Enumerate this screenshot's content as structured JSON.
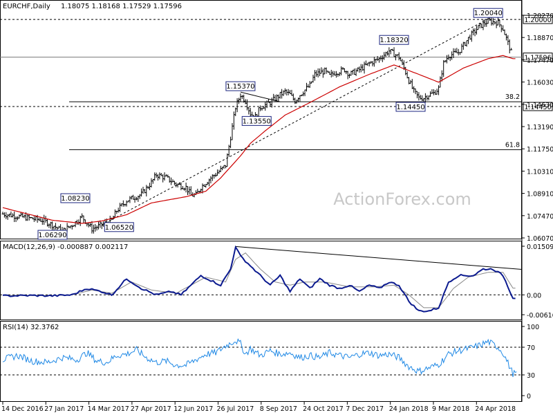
{
  "chart_data": [
    {
      "type": "candlestick",
      "panel": "price",
      "title": "EURCHF,Daily",
      "ohlc_header": "1.18075 1.18168 1.17529 1.17596",
      "ylim": [
        1.0607,
        1.2027
      ],
      "y_ticks": [
        "1.20270",
        "1.18870",
        "1.17470",
        "1.16030",
        "1.14630",
        "1.13190",
        "1.11750",
        "1.10310",
        "1.08910",
        "1.07470",
        "1.06070"
      ],
      "x_ticks": [
        "14 Dec 2016",
        "27 Jan 2017",
        "14 Mar 2017",
        "27 Apr 2017",
        "12 Jun 2017",
        "26 Jul 2017",
        "8 Sep 2017",
        "24 Oct 2017",
        "7 Dec 2017",
        "24 Jan 2018",
        "9 Mar 2018",
        "24 Apr 2018"
      ],
      "close_path": [
        [
          0,
          1.076
        ],
        [
          4,
          1.074
        ],
        [
          8,
          1.072
        ],
        [
          10,
          1.069
        ],
        [
          12,
          1.065
        ],
        [
          14,
          1.069
        ],
        [
          16,
          1.074
        ],
        [
          18,
          1.0665
        ],
        [
          20,
          1.069
        ],
        [
          22,
          1.072
        ],
        [
          23,
          1.078
        ],
        [
          25,
          1.0845
        ],
        [
          28,
          1.0885
        ],
        [
          30,
          1.096
        ],
        [
          31,
          1.101
        ],
        [
          33,
          1.099
        ],
        [
          35,
          1.095
        ],
        [
          37,
          1.093
        ],
        [
          38,
          1.088
        ],
        [
          39,
          1.088
        ],
        [
          40,
          1.093
        ],
        [
          42,
          1.099
        ],
        [
          44,
          1.104
        ],
        [
          45,
          1.107
        ],
        [
          46,
          1.125
        ],
        [
          47,
          1.144
        ],
        [
          48,
          1.152
        ],
        [
          49,
          1.148
        ],
        [
          50,
          1.14
        ],
        [
          51,
          1.138
        ],
        [
          52,
          1.144
        ],
        [
          54,
          1.147
        ],
        [
          56,
          1.152
        ],
        [
          57,
          1.154
        ],
        [
          58,
          1.152
        ],
        [
          59,
          1.148
        ],
        [
          60,
          1.152
        ],
        [
          62,
          1.158
        ],
        [
          63,
          1.165
        ],
        [
          65,
          1.167
        ],
        [
          66,
          1.164
        ],
        [
          67,
          1.166
        ],
        [
          69,
          1.168
        ],
        [
          70,
          1.165
        ],
        [
          72,
          1.168
        ],
        [
          74,
          1.172
        ],
        [
          76,
          1.175
        ],
        [
          78,
          1.18
        ],
        [
          80,
          1.176
        ],
        [
          81,
          1.169
        ],
        [
          82,
          1.161
        ],
        [
          83,
          1.154
        ],
        [
          84,
          1.15
        ],
        [
          85,
          1.15
        ],
        [
          86,
          1.152
        ],
        [
          87,
          1.153
        ],
        [
          88,
          1.156
        ],
        [
          89,
          1.172
        ],
        [
          90,
          1.177
        ],
        [
          92,
          1.179
        ],
        [
          94,
          1.188
        ],
        [
          96,
          1.195
        ],
        [
          98,
          1.199
        ],
        [
          100,
          1.198
        ],
        [
          101,
          1.194
        ],
        [
          102,
          1.185
        ],
        [
          103,
          1.176
        ]
      ],
      "series": [
        {
          "name": "",
          "color": "#cc0000",
          "values": [
            [
              0,
              1.08
            ],
            [
              10,
              1.072
            ],
            [
              16,
              1.07
            ],
            [
              20,
              1.0715
            ],
            [
              25,
              1.0755
            ],
            [
              30,
              1.083
            ],
            [
              37,
              1.087
            ],
            [
              41,
              1.0905
            ],
            [
              44,
              1.099
            ],
            [
              46,
              1.106
            ],
            [
              48,
              1.113
            ],
            [
              50,
              1.121
            ],
            [
              53,
              1.129
            ],
            [
              57,
              1.139
            ],
            [
              62,
              1.147
            ],
            [
              68,
              1.157
            ],
            [
              74,
              1.165
            ],
            [
              79,
              1.171
            ],
            [
              84,
              1.165
            ],
            [
              88,
              1.16
            ],
            [
              93,
              1.169
            ],
            [
              98,
              1.175
            ],
            [
              101,
              1.177
            ],
            [
              103,
              1.175
            ]
          ]
        }
      ],
      "annotations": {
        "price_labels": [
          {
            "text": "1.20040",
            "x": 98,
            "y": 1.2004
          },
          {
            "text": "1.18320",
            "x": 79,
            "y": 1.1832
          },
          {
            "text": "1.15370",
            "x": 48,
            "y": 1.1537
          },
          {
            "text": "1.13550",
            "x": 50,
            "y": 1.1355
          },
          {
            "text": "1.14450",
            "x": 85,
            "y": 1.1445
          },
          {
            "text": "1.08230",
            "x": 18,
            "y": 1.0823
          },
          {
            "text": "1.06520",
            "x": 20,
            "y": 1.0652
          },
          {
            "text": "1.06290",
            "x": 12,
            "y": 1.0629
          }
        ],
        "level_labels": [
          {
            "text": "1.20000",
            "y": 1.2
          },
          {
            "text": "1.17596",
            "y": 1.17596
          },
          {
            "text": "1.14450",
            "y": 1.1445
          }
        ],
        "fib_labels": [
          {
            "text": "38.2",
            "y": 1.1475
          },
          {
            "text": "61.8",
            "y": 1.117
          }
        ],
        "brand": "ActionForex.com"
      }
    },
    {
      "type": "line",
      "panel": "macd",
      "title": "MACD(12,26,9) -0.000887 0.002117",
      "ylim": [
        -0.00616,
        0.01509
      ],
      "y_ticks": [
        "0.015092",
        "0.00",
        "-0.00616"
      ],
      "series": [
        {
          "name": "",
          "color": "#0b1a8f",
          "values": [
            [
              0,
              -0.0003
            ],
            [
              6,
              -0.0002
            ],
            [
              10,
              -0.0003
            ],
            [
              14,
              0.0
            ],
            [
              17,
              0.002
            ],
            [
              20,
              0.001
            ],
            [
              22,
              0.0
            ],
            [
              25,
              0.005
            ],
            [
              28,
              0.002
            ],
            [
              31,
              0.0
            ],
            [
              34,
              0.001
            ],
            [
              36,
              0.0
            ],
            [
              40,
              0.006
            ],
            [
              44,
              0.003
            ],
            [
              46,
              0.008
            ],
            [
              47,
              0.015
            ],
            [
              48,
              0.012
            ],
            [
              50,
              0.009
            ],
            [
              52,
              0.006
            ],
            [
              54,
              0.003
            ],
            [
              56,
              0.006
            ],
            [
              58,
              0.001
            ],
            [
              60,
              0.005
            ],
            [
              62,
              0.002
            ],
            [
              64,
              0.005
            ],
            [
              66,
              0.003
            ],
            [
              68,
              0.002
            ],
            [
              70,
              0.003
            ],
            [
              72,
              0.001
            ],
            [
              74,
              0.003
            ],
            [
              76,
              0.002
            ],
            [
              78,
              0.004
            ],
            [
              80,
              0.003
            ],
            [
              82,
              -0.002
            ],
            [
              84,
              -0.005
            ],
            [
              86,
              -0.005
            ],
            [
              88,
              -0.004
            ],
            [
              90,
              0.004
            ],
            [
              92,
              0.006
            ],
            [
              95,
              0.006
            ],
            [
              97,
              0.008
            ],
            [
              99,
              0.008
            ],
            [
              101,
              0.006
            ],
            [
              103,
              -0.0009
            ]
          ]
        },
        {
          "name": "",
          "color": "#888888",
          "values": [
            [
              0,
              -0.0002
            ],
            [
              10,
              -0.0002
            ],
            [
              14,
              0.0
            ],
            [
              18,
              0.0015
            ],
            [
              22,
              0.0005
            ],
            [
              26,
              0.004
            ],
            [
              30,
              0.0015
            ],
            [
              35,
              0.0005
            ],
            [
              41,
              0.0055
            ],
            [
              45,
              0.004
            ],
            [
              47,
              0.011
            ],
            [
              49,
              0.013
            ],
            [
              52,
              0.008
            ],
            [
              55,
              0.004
            ],
            [
              58,
              0.003
            ],
            [
              61,
              0.004
            ],
            [
              65,
              0.004
            ],
            [
              70,
              0.0025
            ],
            [
              75,
              0.0025
            ],
            [
              79,
              0.003
            ],
            [
              82,
              0.0
            ],
            [
              85,
              -0.004
            ],
            [
              88,
              -0.004
            ],
            [
              91,
              0.002
            ],
            [
              94,
              0.0055
            ],
            [
              98,
              0.007
            ],
            [
              101,
              0.007
            ],
            [
              103,
              0.0021
            ]
          ]
        }
      ]
    },
    {
      "type": "line",
      "panel": "rsi",
      "title": "RSI(14) 32.3762",
      "ylim": [
        0,
        100
      ],
      "y_ticks": [
        "100",
        "70",
        "30",
        "0"
      ],
      "series": [
        {
          "name": "",
          "color": "#1e88e5",
          "values": [
            [
              0,
              52
            ],
            [
              3,
              58
            ],
            [
              6,
              50
            ],
            [
              9,
              48
            ],
            [
              12,
              55
            ],
            [
              15,
              52
            ],
            [
              17,
              62
            ],
            [
              19,
              50
            ],
            [
              21,
              48
            ],
            [
              23,
              58
            ],
            [
              25,
              60
            ],
            [
              27,
              66
            ],
            [
              29,
              55
            ],
            [
              31,
              48
            ],
            [
              33,
              50
            ],
            [
              35,
              44
            ],
            [
              37,
              44
            ],
            [
              39,
              52
            ],
            [
              41,
              60
            ],
            [
              43,
              62
            ],
            [
              45,
              72
            ],
            [
              47,
              80
            ],
            [
              48,
              75
            ],
            [
              49,
              60
            ],
            [
              50,
              68
            ],
            [
              52,
              58
            ],
            [
              54,
              65
            ],
            [
              56,
              60
            ],
            [
              58,
              62
            ],
            [
              60,
              55
            ],
            [
              62,
              58
            ],
            [
              64,
              55
            ],
            [
              66,
              62
            ],
            [
              68,
              58
            ],
            [
              70,
              55
            ],
            [
              72,
              60
            ],
            [
              74,
              62
            ],
            [
              76,
              58
            ],
            [
              78,
              60
            ],
            [
              80,
              55
            ],
            [
              82,
              42
            ],
            [
              84,
              35
            ],
            [
              86,
              40
            ],
            [
              88,
              45
            ],
            [
              90,
              60
            ],
            [
              92,
              65
            ],
            [
              94,
              68
            ],
            [
              96,
              72
            ],
            [
              98,
              78
            ],
            [
              100,
              70
            ],
            [
              101,
              62
            ],
            [
              103,
              32
            ]
          ]
        }
      ]
    }
  ]
}
